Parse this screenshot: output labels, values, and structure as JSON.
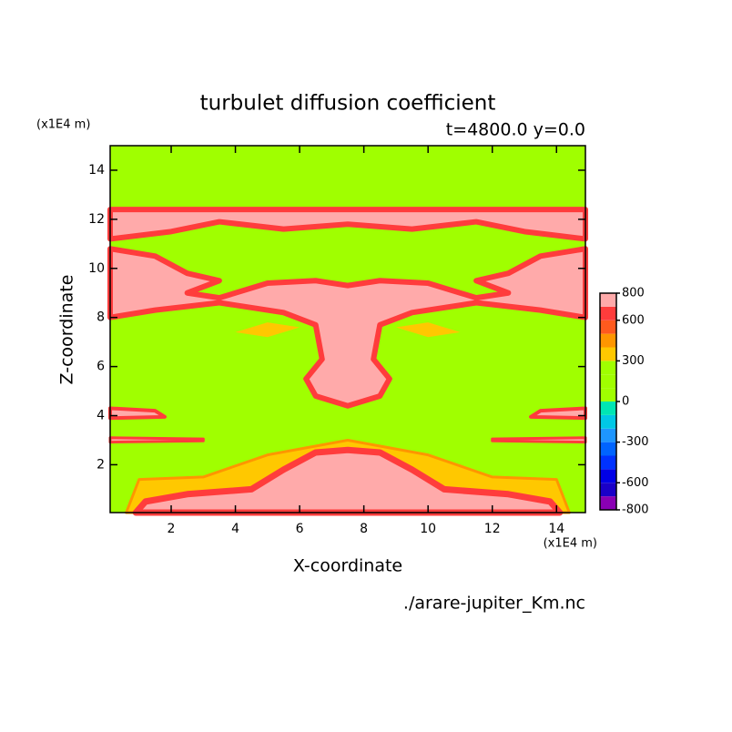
{
  "chart_data": {
    "type": "contour",
    "title": "turbulet diffusion coefficient",
    "subtitle": "t=4800.0 y=0.0",
    "xlabel": "X-coordinate",
    "ylabel": "Z-coordinate",
    "x_unit": "(x1E4 m)",
    "y_unit": "(x1E4 m)",
    "source": "./arare-jupiter_Km.nc",
    "xlim": [
      0.1,
      14.9
    ],
    "xticks": [
      2,
      4,
      6,
      8,
      10,
      12,
      14
    ],
    "ylim": [
      0.05,
      15
    ],
    "yticks": [
      2,
      4,
      6,
      8,
      10,
      12,
      14
    ],
    "colorbar": {
      "levels": [
        -800,
        -700,
        -600,
        -500,
        -400,
        -300,
        -200,
        -100,
        0,
        100,
        200,
        300,
        400,
        500,
        600,
        700,
        800
      ],
      "colors": [
        "#8a00b4",
        "#1a00c8",
        "#0000e6",
        "#0032ff",
        "#0064ff",
        "#1e96ff",
        "#00c8e6",
        "#00e6b4",
        "#a0ff00",
        "#a0ff00",
        "#a0ff00",
        "#ffc800",
        "#ff9600",
        "#ff5a1e",
        "#ff3c3c",
        "#ffaaaa"
      ],
      "ticks": [
        -800,
        -600,
        -300,
        0,
        300,
        600,
        800
      ]
    }
  }
}
